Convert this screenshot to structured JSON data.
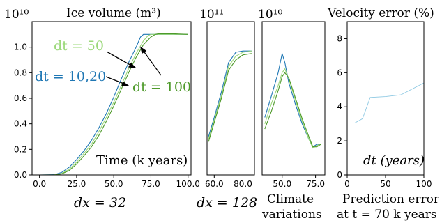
{
  "colors": {
    "dark_blue": "#1f77b4",
    "light_green": "#9bd87a",
    "dark_green": "#4e9a2a",
    "light_blue": "#8ec9e3",
    "axis": "#000000"
  },
  "panel1": {
    "title": "Ice volume (m³)",
    "exponent": "10¹⁰",
    "inner_label": "Time (k years)",
    "caption": "dx = 32",
    "annot_dt50": "dt = 50",
    "annot_dt1020": "dt = 10,20",
    "annot_dt100": "dt = 100"
  },
  "panel2": {
    "exponent": "10¹¹",
    "caption": "dx = 128"
  },
  "panel3": {
    "exponent": "10¹⁰",
    "caption_line1": "Climate",
    "caption_line2": "variations"
  },
  "panel4": {
    "title": "Velocity error (%)",
    "inner_label": "dt (years)",
    "caption_line1": "Prediction error",
    "caption_line2": "at t = 70 k years"
  },
  "chart_data": [
    {
      "type": "line",
      "title": "Ice volume (m³)",
      "xlabel": "Time (k years)",
      "scale_note": "×10¹⁰",
      "xlim": [
        -5,
        102
      ],
      "ylim": [
        0,
        1.2
      ],
      "x_ticks": [
        "0.0",
        "25.0",
        "50.0",
        "75.0",
        "100.0"
      ],
      "y_ticks": [
        "0.0",
        "0.2",
        "0.4",
        "0.6",
        "0.8",
        "1.0"
      ],
      "grid": false,
      "series": [
        {
          "name": "dt = 10,20",
          "color": "#1f77b4",
          "x": [
            0,
            10,
            15,
            20,
            25,
            30,
            35,
            40,
            45,
            50,
            55,
            60,
            65,
            68,
            70,
            72,
            75,
            80,
            90,
            100
          ],
          "y": [
            0,
            0.002,
            0.02,
            0.06,
            0.12,
            0.19,
            0.27,
            0.37,
            0.48,
            0.61,
            0.75,
            0.88,
            1.0,
            1.08,
            1.1,
            1.1,
            1.1,
            1.1,
            1.1,
            1.1
          ]
        },
        {
          "name": "dt = 50",
          "color": "#9bd87a",
          "x": [
            0,
            10,
            15,
            20,
            25,
            30,
            35,
            40,
            45,
            50,
            55,
            60,
            65,
            70,
            73,
            75,
            80,
            90,
            100
          ],
          "y": [
            0,
            0.001,
            0.012,
            0.045,
            0.1,
            0.17,
            0.24,
            0.34,
            0.45,
            0.57,
            0.7,
            0.83,
            0.95,
            1.05,
            1.09,
            1.1,
            1.1,
            1.1,
            1.1
          ]
        },
        {
          "name": "dt = 100",
          "color": "#4e9a2a",
          "x": [
            0,
            10,
            15,
            20,
            25,
            30,
            35,
            40,
            45,
            50,
            55,
            60,
            65,
            70,
            75,
            78,
            80,
            90,
            100
          ],
          "y": [
            0,
            0.0,
            0.008,
            0.035,
            0.085,
            0.15,
            0.22,
            0.31,
            0.42,
            0.54,
            0.67,
            0.8,
            0.92,
            1.02,
            1.08,
            1.1,
            1.105,
            1.105,
            1.1
          ]
        }
      ]
    },
    {
      "type": "line",
      "scale_note": "×10¹¹",
      "xlim": [
        55,
        88
      ],
      "x_ticks": [
        "60.0",
        "80.0"
      ],
      "grid": false,
      "series": [
        {
          "name": "dt = 10,20",
          "color": "#1f77b4",
          "x": [
            56,
            60,
            65,
            70,
            75,
            80,
            86
          ],
          "y": [
            0.3,
            0.45,
            0.65,
            0.88,
            0.96,
            0.97,
            0.97
          ]
        },
        {
          "name": "dt = 50",
          "color": "#9bd87a",
          "x": [
            56,
            60,
            65,
            70,
            75,
            80,
            86
          ],
          "y": [
            0.28,
            0.43,
            0.62,
            0.85,
            0.93,
            0.96,
            0.97
          ]
        },
        {
          "name": "dt = 100",
          "color": "#4e9a2a",
          "x": [
            56,
            60,
            65,
            70,
            75,
            80,
            86
          ],
          "y": [
            0.26,
            0.41,
            0.6,
            0.82,
            0.9,
            0.94,
            0.95
          ]
        }
      ]
    },
    {
      "type": "line",
      "scale_note": "×10¹⁰",
      "xlim": [
        35,
        82
      ],
      "x_ticks": [
        "50.0",
        "75.0"
      ],
      "grid": false,
      "series": [
        {
          "name": "dt = 10,20",
          "color": "#1f77b4",
          "x": [
            37,
            42,
            47,
            50,
            52,
            55,
            60,
            65,
            70,
            73,
            76,
            79
          ],
          "y": [
            0.45,
            0.62,
            0.8,
            0.95,
            0.88,
            0.72,
            0.55,
            0.4,
            0.28,
            0.22,
            0.24,
            0.24
          ]
        },
        {
          "name": "dt = 50",
          "color": "#9bd87a",
          "x": [
            37,
            42,
            47,
            50,
            52,
            55,
            60,
            65,
            70,
            73,
            76,
            79
          ],
          "y": [
            0.4,
            0.56,
            0.7,
            0.8,
            0.83,
            0.75,
            0.58,
            0.42,
            0.28,
            0.21,
            0.23,
            0.24
          ]
        },
        {
          "name": "dt = 100",
          "color": "#4e9a2a",
          "x": [
            37,
            42,
            47,
            50,
            52,
            55,
            60,
            65,
            70,
            73,
            76,
            79
          ],
          "y": [
            0.36,
            0.5,
            0.66,
            0.77,
            0.8,
            0.76,
            0.6,
            0.44,
            0.3,
            0.22,
            0.22,
            0.24
          ]
        }
      ]
    },
    {
      "type": "line",
      "title": "Velocity error (%)",
      "xlabel": "dt (years)",
      "xlim": [
        0,
        100
      ],
      "ylim": [
        0,
        9
      ],
      "x_ticks": [
        "0",
        "50",
        "100"
      ],
      "y_ticks": [
        "0",
        "2",
        "4",
        "6",
        "8"
      ],
      "grid": false,
      "series": [
        {
          "color": "#8ec9e3",
          "x": [
            10,
            20,
            30,
            50,
            70,
            100
          ],
          "y": [
            3.05,
            3.3,
            4.55,
            4.6,
            4.7,
            5.4
          ]
        }
      ]
    }
  ]
}
